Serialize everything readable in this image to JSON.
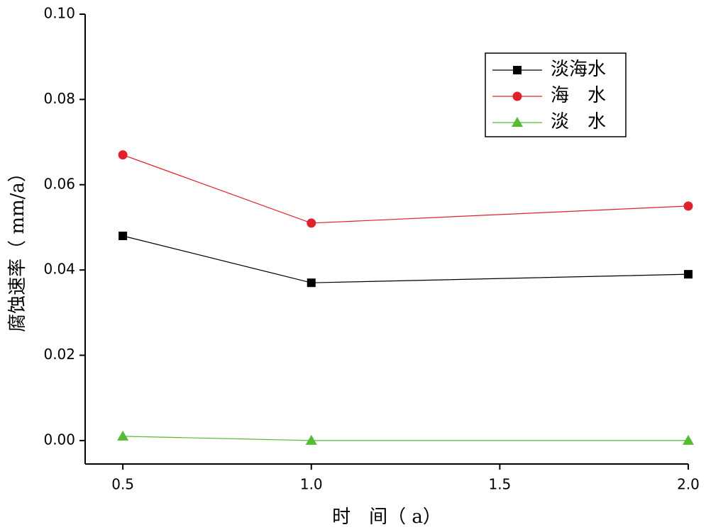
{
  "chart_data": {
    "type": "line",
    "x_label": "时　间（ a）",
    "y_label": "腐蚀速率（ mm/a）",
    "x": [
      0.5,
      1.0,
      2.0
    ],
    "series": [
      {
        "name": "淡海水",
        "color": "#000000",
        "marker": "square",
        "values": [
          0.048,
          0.037,
          0.039
        ]
      },
      {
        "name": "海　水",
        "color": "#e0202a",
        "marker": "circle",
        "values": [
          0.067,
          0.051,
          0.055
        ]
      },
      {
        "name": "淡　水",
        "color": "#55bb33",
        "marker": "triangle",
        "values": [
          0.001,
          0,
          0
        ]
      }
    ],
    "xlim": [
      0.4,
      2.0
    ],
    "xticks": [
      0.5,
      {
        "value": 1.0,
        "label": "1.0"
      },
      1.5,
      {
        "value": 2.0,
        "label": "2.0"
      }
    ],
    "ylim": [
      -0.0055,
      0.1
    ],
    "yticks": [
      {
        "value": 0,
        "label": "0.00"
      },
      0.02,
      0.04,
      0.06,
      0.08,
      {
        "value": 0.1,
        "label": "0.10"
      }
    ],
    "legend": "upper right"
  }
}
